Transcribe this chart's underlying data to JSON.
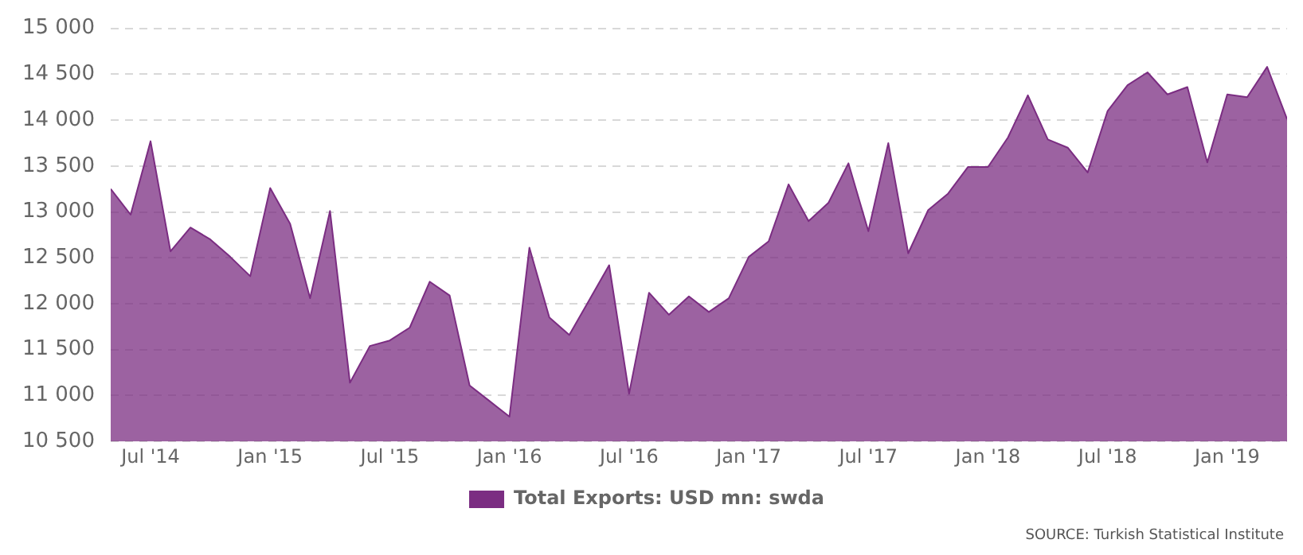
{
  "chart_data": {
    "type": "area",
    "x": [
      "2014-05",
      "2014-06",
      "2014-07",
      "2014-08",
      "2014-09",
      "2014-10",
      "2014-11",
      "2014-12",
      "2015-01",
      "2015-02",
      "2015-03",
      "2015-04",
      "2015-05",
      "2015-06",
      "2015-07",
      "2015-08",
      "2015-09",
      "2015-10",
      "2015-11",
      "2015-12",
      "2016-01",
      "2016-02",
      "2016-03",
      "2016-04",
      "2016-05",
      "2016-06",
      "2016-07",
      "2016-08",
      "2016-09",
      "2016-10",
      "2016-11",
      "2016-12",
      "2017-01",
      "2017-02",
      "2017-03",
      "2017-04",
      "2017-05",
      "2017-06",
      "2017-07",
      "2017-08",
      "2017-09",
      "2017-10",
      "2017-11",
      "2017-12",
      "2018-01",
      "2018-02",
      "2018-03",
      "2018-04",
      "2018-05",
      "2018-06",
      "2018-07",
      "2018-08",
      "2018-09",
      "2018-10",
      "2018-11",
      "2018-12",
      "2019-01",
      "2019-02",
      "2019-03",
      "2019-04"
    ],
    "series": [
      {
        "name": "Total Exports: USD mn: swda",
        "color": "#7b2d82",
        "values": [
          13250,
          12970,
          13770,
          12570,
          12830,
          12700,
          12510,
          12300,
          13260,
          12870,
          12060,
          13010,
          11140,
          11540,
          11600,
          11740,
          12240,
          12090,
          11110,
          10940,
          10770,
          12610,
          11850,
          11660,
          12040,
          12420,
          11020,
          12120,
          11880,
          12080,
          11910,
          12060,
          12510,
          12680,
          13300,
          12900,
          13100,
          13530,
          12790,
          13750,
          12550,
          13020,
          13200,
          13490,
          13490,
          13810,
          14270,
          13790,
          13700,
          13430,
          14100,
          14380,
          14520,
          14280,
          14360,
          13540,
          14280,
          14250,
          14580,
          14010
        ]
      }
    ],
    "xlim": [
      "2014-05",
      "2019-04"
    ],
    "xticks": [
      {
        "value": "2014-07",
        "label": "Jul '14"
      },
      {
        "value": "2015-01",
        "label": "Jan '15"
      },
      {
        "value": "2015-07",
        "label": "Jul '15"
      },
      {
        "value": "2016-01",
        "label": "Jan '16"
      },
      {
        "value": "2016-07",
        "label": "Jul '16"
      },
      {
        "value": "2017-01",
        "label": "Jan '17"
      },
      {
        "value": "2017-07",
        "label": "Jul '17"
      },
      {
        "value": "2018-01",
        "label": "Jan '18"
      },
      {
        "value": "2018-07",
        "label": "Jul '18"
      },
      {
        "value": "2019-01",
        "label": "Jan '19"
      }
    ],
    "ylim": [
      10500,
      15000
    ],
    "yticks": [
      {
        "value": 10500,
        "label": "10 500"
      },
      {
        "value": 11000,
        "label": "11 000"
      },
      {
        "value": 11500,
        "label": "11 500"
      },
      {
        "value": 12000,
        "label": "12 000"
      },
      {
        "value": 12500,
        "label": "12 500"
      },
      {
        "value": 13000,
        "label": "13 000"
      },
      {
        "value": 13500,
        "label": "13 500"
      },
      {
        "value": 14000,
        "label": "14 000"
      },
      {
        "value": 14500,
        "label": "14 500"
      },
      {
        "value": 15000,
        "label": "15 000"
      }
    ],
    "grid": "y",
    "legend": "bottom",
    "marker": "none",
    "annotations": [
      "SOURCE: Turkish Statistical Institute"
    ]
  }
}
